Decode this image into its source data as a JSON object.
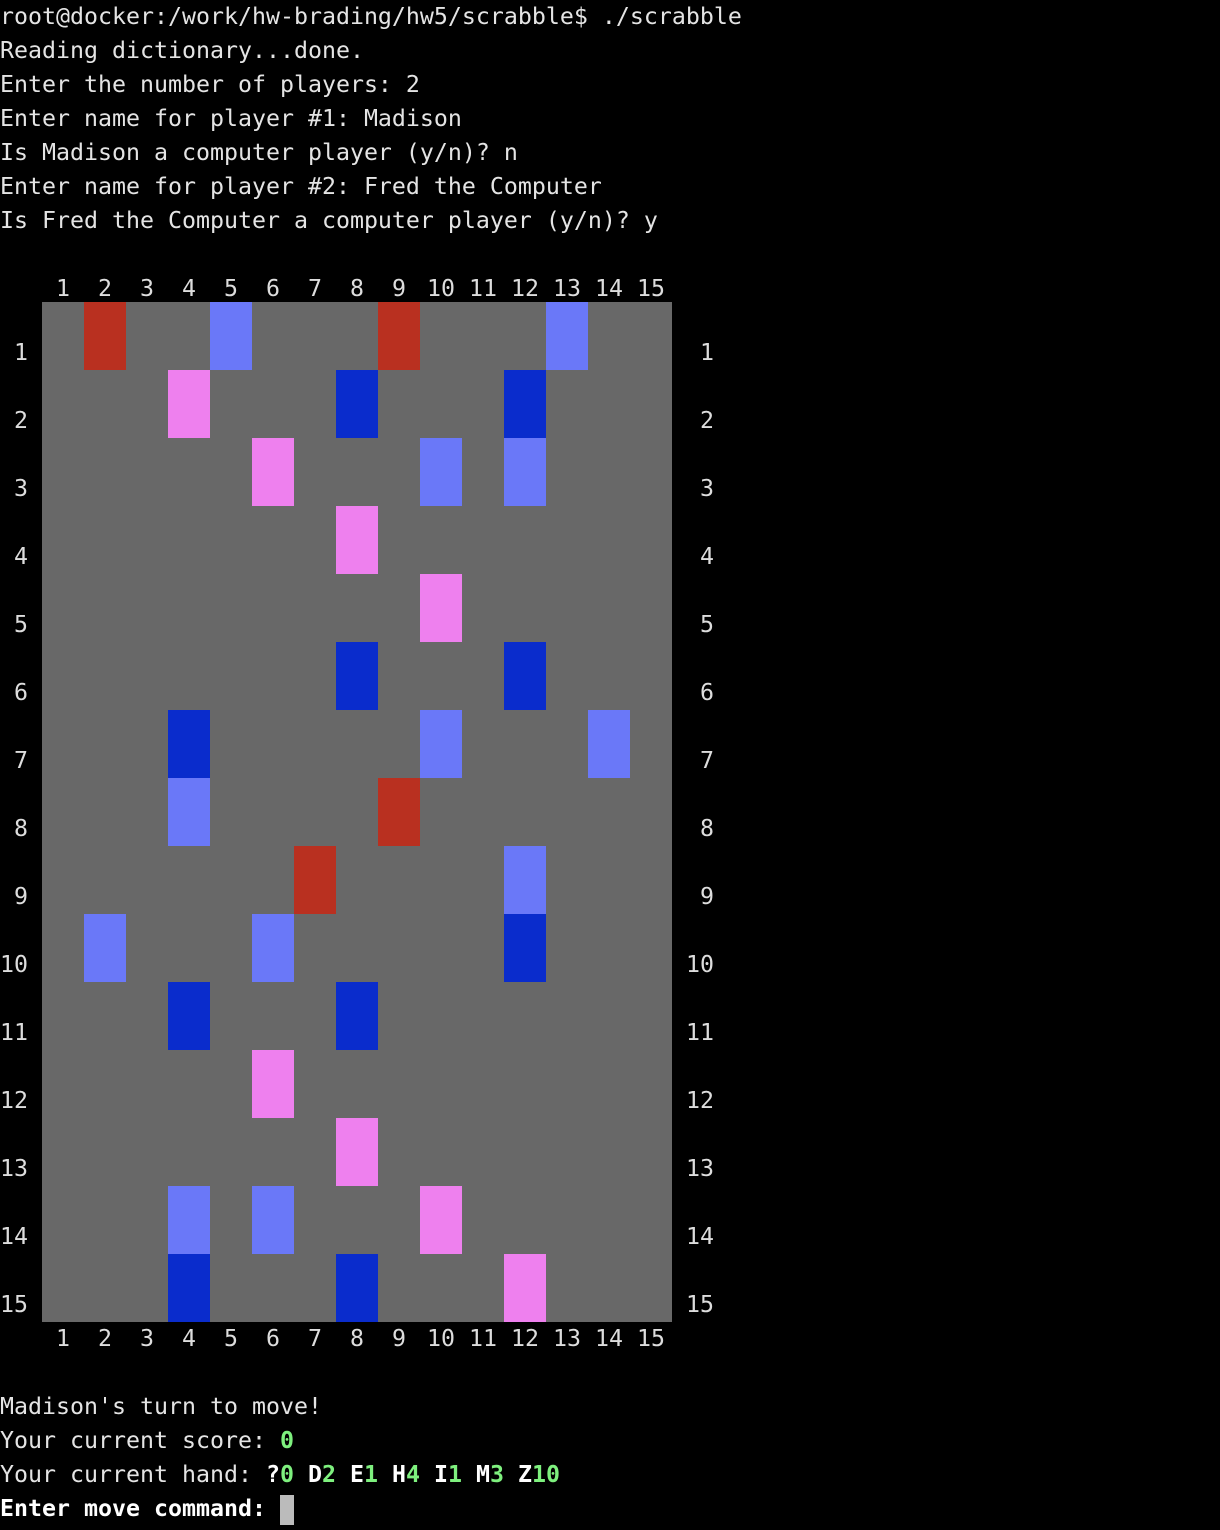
{
  "lines": [
    "root@docker:/work/hw-brading/hw5/scrabble$ ./scrabble",
    "Reading dictionary...done.",
    "Enter the number of players: 2",
    "Enter name for player #1: Madison",
    "Is Madison a computer player (y/n)? n",
    "Enter name for player #2: Fred the Computer",
    "Is Fred the Computer a computer player (y/n)? y"
  ],
  "board": {
    "column_labels": [
      "1",
      "2",
      "3",
      "4",
      "5",
      "6",
      "7",
      "8",
      "9",
      "10",
      "11",
      "12",
      "13",
      "14",
      "15"
    ],
    "row_labels": [
      "1",
      "2",
      "3",
      "4",
      "5",
      "6",
      "7",
      "8",
      "9",
      "10",
      "11",
      "12",
      "13",
      "14",
      "15"
    ],
    "background": "#686868",
    "squares": [
      {
        "row": 1,
        "col": 2,
        "color": "#b93020"
      },
      {
        "row": 1,
        "col": 5,
        "color": "#6a78f8"
      },
      {
        "row": 1,
        "col": 9,
        "color": "#b93020"
      },
      {
        "row": 1,
        "col": 13,
        "color": "#6a78f8"
      },
      {
        "row": 2,
        "col": 4,
        "color": "#ee80ee"
      },
      {
        "row": 2,
        "col": 8,
        "color": "#0a2ccc"
      },
      {
        "row": 2,
        "col": 12,
        "color": "#0a2ccc"
      },
      {
        "row": 3,
        "col": 6,
        "color": "#ee80ee"
      },
      {
        "row": 3,
        "col": 10,
        "color": "#6a78f8"
      },
      {
        "row": 3,
        "col": 12,
        "color": "#6a78f8"
      },
      {
        "row": 4,
        "col": 8,
        "color": "#ee80ee"
      },
      {
        "row": 5,
        "col": 10,
        "color": "#ee80ee"
      },
      {
        "row": 6,
        "col": 8,
        "color": "#0a2ccc"
      },
      {
        "row": 6,
        "col": 12,
        "color": "#0a2ccc"
      },
      {
        "row": 7,
        "col": 4,
        "color": "#0a2ccc"
      },
      {
        "row": 7,
        "col": 10,
        "color": "#6a78f8"
      },
      {
        "row": 7,
        "col": 14,
        "color": "#6a78f8"
      },
      {
        "row": 8,
        "col": 4,
        "color": "#6a78f8"
      },
      {
        "row": 8,
        "col": 9,
        "color": "#b93020"
      },
      {
        "row": 9,
        "col": 7,
        "color": "#b93020"
      },
      {
        "row": 9,
        "col": 12,
        "color": "#6a78f8"
      },
      {
        "row": 10,
        "col": 2,
        "color": "#6a78f8"
      },
      {
        "row": 10,
        "col": 6,
        "color": "#6a78f8"
      },
      {
        "row": 10,
        "col": 12,
        "color": "#0a2ccc"
      },
      {
        "row": 11,
        "col": 4,
        "color": "#0a2ccc"
      },
      {
        "row": 11,
        "col": 8,
        "color": "#0a2ccc"
      },
      {
        "row": 12,
        "col": 6,
        "color": "#ee80ee"
      },
      {
        "row": 13,
        "col": 8,
        "color": "#ee80ee"
      },
      {
        "row": 14,
        "col": 4,
        "color": "#6a78f8"
      },
      {
        "row": 14,
        "col": 6,
        "color": "#6a78f8"
      },
      {
        "row": 14,
        "col": 10,
        "color": "#ee80ee"
      },
      {
        "row": 15,
        "col": 4,
        "color": "#0a2ccc"
      },
      {
        "row": 15,
        "col": 8,
        "color": "#0a2ccc"
      },
      {
        "row": 15,
        "col": 12,
        "color": "#ee80ee"
      }
    ]
  },
  "status": {
    "turn": "Madison's turn to move!",
    "score_label": "Your current score:",
    "score": 0,
    "hand_label": "Your current hand:",
    "hand": [
      {
        "letter": "?",
        "points": 0
      },
      {
        "letter": "D",
        "points": 2
      },
      {
        "letter": "E",
        "points": 1
      },
      {
        "letter": "H",
        "points": 4
      },
      {
        "letter": "I",
        "points": 1
      },
      {
        "letter": "M",
        "points": 3
      },
      {
        "letter": "Z",
        "points": 10
      }
    ],
    "prompt": "Enter move command:"
  }
}
